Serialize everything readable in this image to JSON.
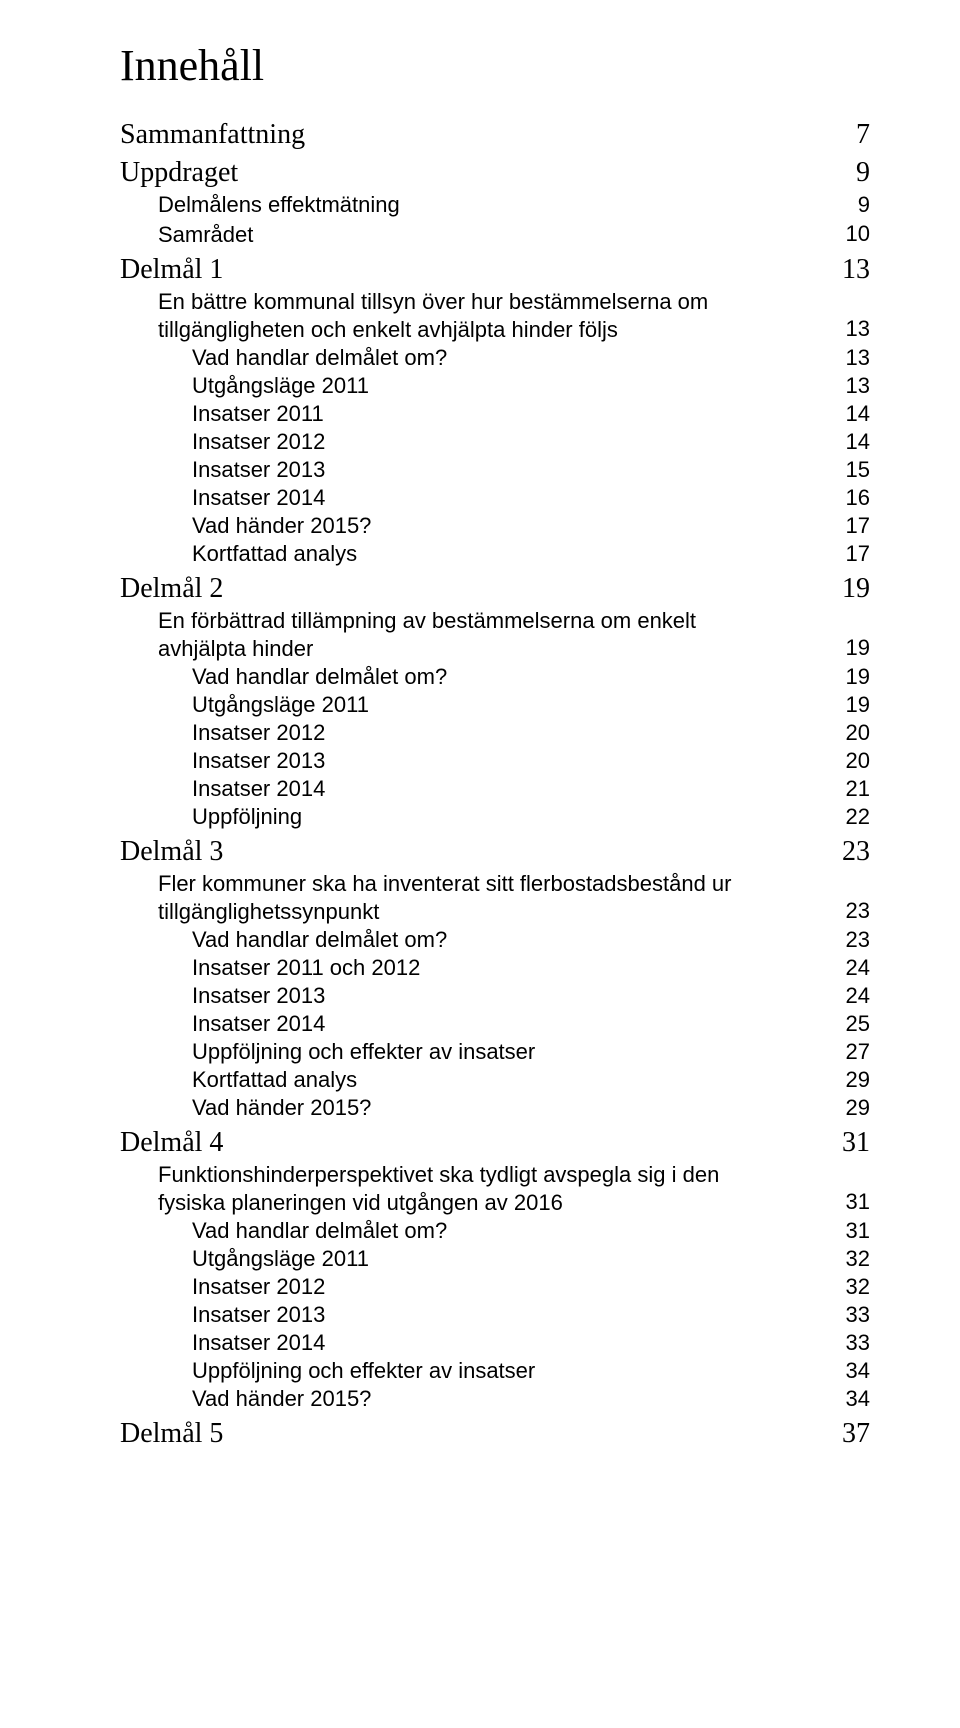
{
  "document": {
    "heading": "Innehåll",
    "font": {
      "heading_family": "Times New Roman",
      "heading_size_pt": 33,
      "body_family": "Arial",
      "lvl0_size_pt": 21,
      "lvl1_size_pt": 17,
      "lvl2_size_pt": 17
    },
    "colors": {
      "text": "#000000",
      "background": "#ffffff"
    }
  },
  "toc": [
    {
      "level": 0,
      "label": "Sammanfattning",
      "page": "7"
    },
    {
      "level": 0,
      "label": "Uppdraget",
      "page": "9"
    },
    {
      "level": 1,
      "label": "Delmålens effektmätning",
      "page": "9"
    },
    {
      "level": 1,
      "label": "Samrådet",
      "page": "10"
    },
    {
      "level": 0,
      "label": "Delmål 1",
      "page": "13"
    },
    {
      "level": 1,
      "label": "En bättre kommunal tillsyn över hur bestämmelserna om tillgängligheten och enkelt avhjälpta hinder följs",
      "page": "13"
    },
    {
      "level": 2,
      "label": "Vad handlar delmålet om?",
      "page": "13"
    },
    {
      "level": 2,
      "label": "Utgångsläge 2011",
      "page": "13"
    },
    {
      "level": 2,
      "label": "Insatser 2011",
      "page": "14"
    },
    {
      "level": 2,
      "label": "Insatser 2012",
      "page": "14"
    },
    {
      "level": 2,
      "label": "Insatser 2013",
      "page": "15"
    },
    {
      "level": 2,
      "label": "Insatser 2014",
      "page": "16"
    },
    {
      "level": 2,
      "label": "Vad händer 2015?",
      "page": "17"
    },
    {
      "level": 2,
      "label": "Kortfattad analys",
      "page": "17"
    },
    {
      "level": 0,
      "label": "Delmål 2",
      "page": "19"
    },
    {
      "level": 1,
      "label": "En förbättrad tillämpning av bestämmelserna om enkelt avhjälpta hinder",
      "page": "19"
    },
    {
      "level": 2,
      "label": "Vad handlar delmålet om?",
      "page": "19"
    },
    {
      "level": 2,
      "label": "Utgångsläge 2011",
      "page": "19"
    },
    {
      "level": 2,
      "label": "Insatser 2012",
      "page": "20"
    },
    {
      "level": 2,
      "label": "Insatser 2013",
      "page": "20"
    },
    {
      "level": 2,
      "label": "Insatser 2014",
      "page": "21"
    },
    {
      "level": 2,
      "label": "Uppföljning",
      "page": "22"
    },
    {
      "level": 0,
      "label": "Delmål 3",
      "page": "23"
    },
    {
      "level": 1,
      "label": "Fler kommuner ska ha inventerat sitt flerbostadsbestånd ur tillgänglighetssynpunkt",
      "page": "23"
    },
    {
      "level": 2,
      "label": "Vad handlar delmålet om?",
      "page": "23"
    },
    {
      "level": 2,
      "label": "Insatser 2011 och 2012",
      "page": "24"
    },
    {
      "level": 2,
      "label": "Insatser 2013",
      "page": "24"
    },
    {
      "level": 2,
      "label": "Insatser 2014",
      "page": "25"
    },
    {
      "level": 2,
      "label": "Uppföljning och effekter av insatser",
      "page": "27"
    },
    {
      "level": 2,
      "label": "Kortfattad analys",
      "page": "29"
    },
    {
      "level": 2,
      "label": "Vad händer 2015?",
      "page": "29"
    },
    {
      "level": 0,
      "label": "Delmål 4",
      "page": "31"
    },
    {
      "level": 1,
      "label": "Funktionshinderperspektivet ska tydligt avspegla sig i den fysiska planeringen vid utgången av 2016",
      "page": "31"
    },
    {
      "level": 2,
      "label": "Vad handlar delmålet om?",
      "page": "31"
    },
    {
      "level": 2,
      "label": "Utgångsläge 2011",
      "page": "32"
    },
    {
      "level": 2,
      "label": "Insatser 2012",
      "page": "32"
    },
    {
      "level": 2,
      "label": "Insatser 2013",
      "page": "33"
    },
    {
      "level": 2,
      "label": "Insatser 2014",
      "page": "33"
    },
    {
      "level": 2,
      "label": "Uppföljning och effekter av insatser",
      "page": "34"
    },
    {
      "level": 2,
      "label": "Vad händer 2015?",
      "page": "34"
    },
    {
      "level": 0,
      "label": "Delmål 5",
      "page": "37"
    }
  ]
}
